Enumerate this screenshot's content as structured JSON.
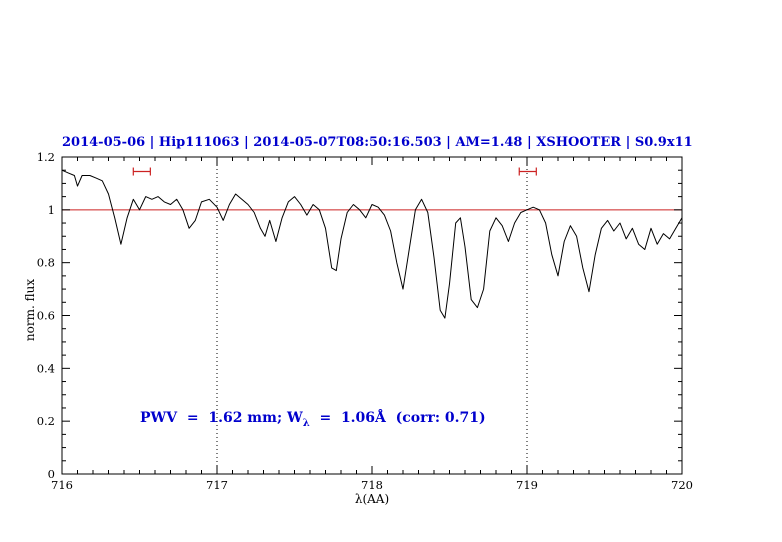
{
  "header": {
    "title": "2014-05-06 | Hip111063 | 2014-05-07T08:50:16.503 | AM=1.48 | XSHOOTER | S0.9x11"
  },
  "annotation": {
    "prefix": "PWV  =  1.62 mm; W",
    "sub": "λ",
    "suffix": "  =  1.06Å  (corr: 0.71)"
  },
  "chart_data": {
    "type": "line",
    "title": "2014-05-06 | Hip111063 | 2014-05-07T08:50:16.503 | AM=1.48 | XSHOOTER | S0.9x11",
    "xlabel": "λ(AA)",
    "ylabel": "norm. flux",
    "xlim": [
      716,
      720
    ],
    "ylim": [
      0,
      1.2
    ],
    "x_tick_labels": [
      "716",
      "717",
      "718",
      "719",
      "720"
    ],
    "y_tick_labels": [
      "0",
      "0.2",
      "0.4",
      "0.6",
      "0.8",
      "1",
      "1.2"
    ],
    "grid": false,
    "reference_line_y": 1.0,
    "dotted_vlines": [
      717,
      719
    ],
    "markers": [
      {
        "x1": 716.46,
        "x2": 716.57,
        "y": 1.145
      },
      {
        "x1": 718.95,
        "x2": 719.06,
        "y": 1.145
      }
    ],
    "colors": {
      "text_blue": "#0000cd",
      "reference": "#cc2222",
      "marker": "#cc2222",
      "spectrum": "#000000"
    },
    "series": [
      {
        "name": "spectrum",
        "color": "#000000",
        "points": [
          [
            716.0,
            1.15
          ],
          [
            716.04,
            1.14
          ],
          [
            716.08,
            1.13
          ],
          [
            716.1,
            1.09
          ],
          [
            716.13,
            1.13
          ],
          [
            716.18,
            1.13
          ],
          [
            716.22,
            1.12
          ],
          [
            716.26,
            1.11
          ],
          [
            716.3,
            1.06
          ],
          [
            716.34,
            0.97
          ],
          [
            716.38,
            0.87
          ],
          [
            716.42,
            0.97
          ],
          [
            716.46,
            1.04
          ],
          [
            716.5,
            1.0
          ],
          [
            716.54,
            1.05
          ],
          [
            716.58,
            1.04
          ],
          [
            716.62,
            1.05
          ],
          [
            716.66,
            1.03
          ],
          [
            716.7,
            1.02
          ],
          [
            716.74,
            1.04
          ],
          [
            716.78,
            1.0
          ],
          [
            716.82,
            0.93
          ],
          [
            716.86,
            0.96
          ],
          [
            716.9,
            1.03
          ],
          [
            716.95,
            1.04
          ],
          [
            717.0,
            1.01
          ],
          [
            717.04,
            0.96
          ],
          [
            717.08,
            1.02
          ],
          [
            717.12,
            1.06
          ],
          [
            717.16,
            1.04
          ],
          [
            717.2,
            1.02
          ],
          [
            717.24,
            0.99
          ],
          [
            717.28,
            0.93
          ],
          [
            717.31,
            0.9
          ],
          [
            717.34,
            0.96
          ],
          [
            717.38,
            0.88
          ],
          [
            717.42,
            0.97
          ],
          [
            717.46,
            1.03
          ],
          [
            717.5,
            1.05
          ],
          [
            717.54,
            1.02
          ],
          [
            717.58,
            0.98
          ],
          [
            717.62,
            1.02
          ],
          [
            717.66,
            1.0
          ],
          [
            717.7,
            0.93
          ],
          [
            717.74,
            0.78
          ],
          [
            717.77,
            0.77
          ],
          [
            717.8,
            0.89
          ],
          [
            717.84,
            0.99
          ],
          [
            717.88,
            1.02
          ],
          [
            717.92,
            1.0
          ],
          [
            717.96,
            0.97
          ],
          [
            718.0,
            1.02
          ],
          [
            718.04,
            1.01
          ],
          [
            718.08,
            0.98
          ],
          [
            718.12,
            0.92
          ],
          [
            718.16,
            0.8
          ],
          [
            718.2,
            0.7
          ],
          [
            718.24,
            0.85
          ],
          [
            718.28,
            1.0
          ],
          [
            718.32,
            1.04
          ],
          [
            718.36,
            0.99
          ],
          [
            718.4,
            0.82
          ],
          [
            718.44,
            0.62
          ],
          [
            718.47,
            0.59
          ],
          [
            718.5,
            0.72
          ],
          [
            718.54,
            0.95
          ],
          [
            718.57,
            0.97
          ],
          [
            718.6,
            0.86
          ],
          [
            718.64,
            0.66
          ],
          [
            718.68,
            0.63
          ],
          [
            718.72,
            0.7
          ],
          [
            718.76,
            0.92
          ],
          [
            718.8,
            0.97
          ],
          [
            718.84,
            0.94
          ],
          [
            718.88,
            0.88
          ],
          [
            718.92,
            0.95
          ],
          [
            718.96,
            0.99
          ],
          [
            719.0,
            1.0
          ],
          [
            719.04,
            1.01
          ],
          [
            719.08,
            1.0
          ],
          [
            719.12,
            0.95
          ],
          [
            719.16,
            0.83
          ],
          [
            719.2,
            0.75
          ],
          [
            719.24,
            0.88
          ],
          [
            719.28,
            0.94
          ],
          [
            719.32,
            0.9
          ],
          [
            719.36,
            0.78
          ],
          [
            719.4,
            0.69
          ],
          [
            719.44,
            0.83
          ],
          [
            719.48,
            0.93
          ],
          [
            719.52,
            0.96
          ],
          [
            719.56,
            0.92
          ],
          [
            719.6,
            0.95
          ],
          [
            719.64,
            0.89
          ],
          [
            719.68,
            0.93
          ],
          [
            719.72,
            0.87
          ],
          [
            719.76,
            0.85
          ],
          [
            719.8,
            0.93
          ],
          [
            719.84,
            0.87
          ],
          [
            719.88,
            0.91
          ],
          [
            719.92,
            0.89
          ],
          [
            719.96,
            0.93
          ],
          [
            720.0,
            0.97
          ]
        ]
      }
    ]
  }
}
